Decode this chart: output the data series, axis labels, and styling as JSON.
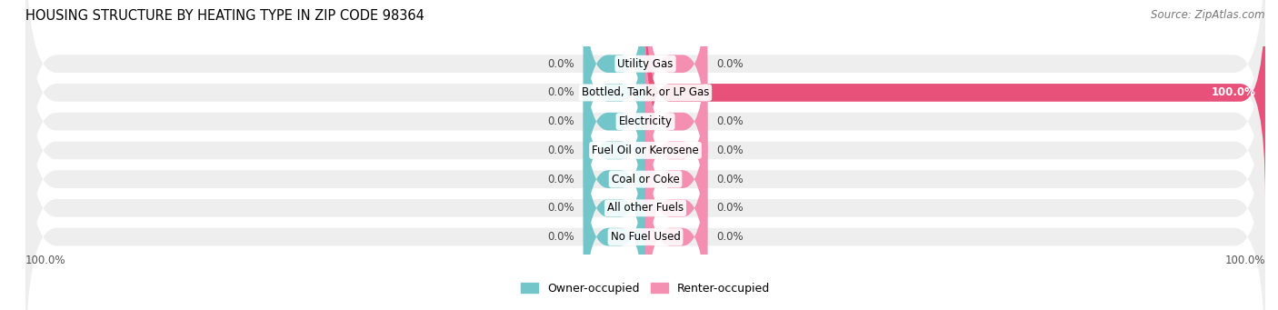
{
  "title": "HOUSING STRUCTURE BY HEATING TYPE IN ZIP CODE 98364",
  "source": "Source: ZipAtlas.com",
  "categories": [
    "Utility Gas",
    "Bottled, Tank, or LP Gas",
    "Electricity",
    "Fuel Oil or Kerosene",
    "Coal or Coke",
    "All other Fuels",
    "No Fuel Used"
  ],
  "owner_values": [
    0.0,
    0.0,
    0.0,
    0.0,
    0.0,
    0.0,
    0.0
  ],
  "renter_values": [
    0.0,
    100.0,
    0.0,
    0.0,
    0.0,
    0.0,
    0.0
  ],
  "owner_color": "#72C5C8",
  "renter_color": "#F48FB1",
  "bar_bg_color": "#EEEEEF",
  "title_fontsize": 10.5,
  "label_fontsize": 8.5,
  "category_fontsize": 8.5,
  "legend_fontsize": 9,
  "source_fontsize": 8.5,
  "renter_100_color": "#E8517A",
  "axis_tick_fontsize": 8.5
}
